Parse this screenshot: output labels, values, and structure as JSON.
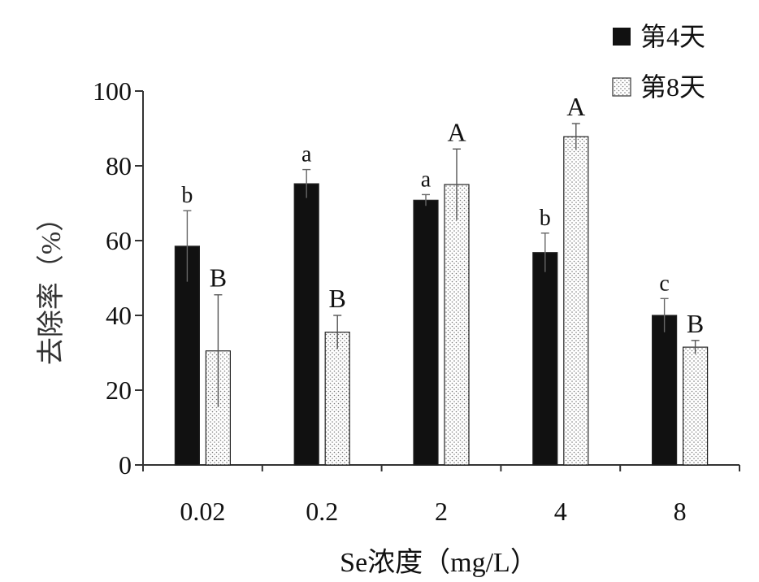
{
  "chart_data": {
    "type": "bar",
    "title": "",
    "xlabel": "Se浓度（mg/L）",
    "ylabel": "去除率（%）",
    "ylim": [
      0,
      100
    ],
    "yticks": [
      0,
      20,
      40,
      60,
      80,
      100
    ],
    "ytick_labels": [
      "0",
      "20",
      "40",
      "60",
      "80",
      "100"
    ],
    "grid": false,
    "legend_position": "top-right",
    "categories": [
      "0.02",
      "0.2",
      "2",
      "4",
      "8"
    ],
    "series": [
      {
        "name": "第4天",
        "pattern": "solid",
        "values": [
          58.5,
          75.2,
          70.8,
          56.8,
          40.0
        ],
        "errors": [
          9.5,
          3.8,
          1.5,
          5.2,
          4.5
        ],
        "labels": [
          "b",
          "a",
          "a",
          "b",
          "c"
        ]
      },
      {
        "name": "第8天",
        "pattern": "dotted",
        "values": [
          30.5,
          35.5,
          75.0,
          87.8,
          31.5
        ],
        "errors": [
          15.0,
          4.5,
          9.5,
          3.5,
          1.8
        ],
        "labels": [
          "B",
          "B",
          "A",
          "A",
          "B"
        ]
      }
    ]
  },
  "colors": {
    "series1_fill": "#111111",
    "series2_dot": "#7a7a7a",
    "axis": "#333333",
    "ylabel": "#333333"
  }
}
